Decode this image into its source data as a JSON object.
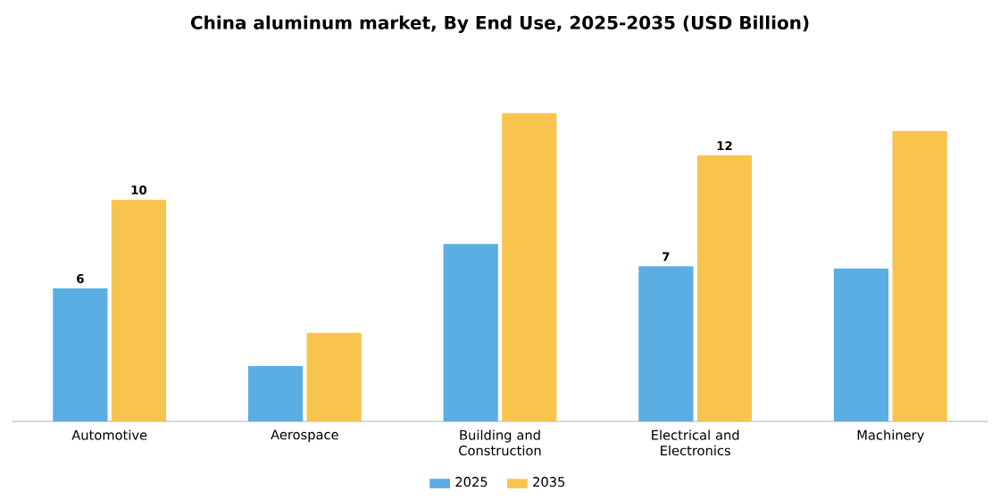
{
  "chart_data": {
    "type": "bar",
    "title": "China aluminum market, By End Use, 2025-2035 (USD Billion)",
    "categories": [
      "Automotive",
      "Aerospace",
      "Building and Construction",
      "Electrical and Electronics",
      "Machinery"
    ],
    "series": [
      {
        "name": "2025",
        "color": "#5aaee3",
        "values": [
          6,
          2.5,
          8,
          7,
          6.9
        ],
        "value_labels": [
          "6",
          null,
          null,
          "7",
          null
        ]
      },
      {
        "name": "2035",
        "color": "#f9c44e",
        "values": [
          10,
          4,
          13.9,
          12,
          13.1
        ],
        "value_labels": [
          "10",
          null,
          null,
          "12",
          null
        ]
      }
    ],
    "legend": "bottom"
  }
}
